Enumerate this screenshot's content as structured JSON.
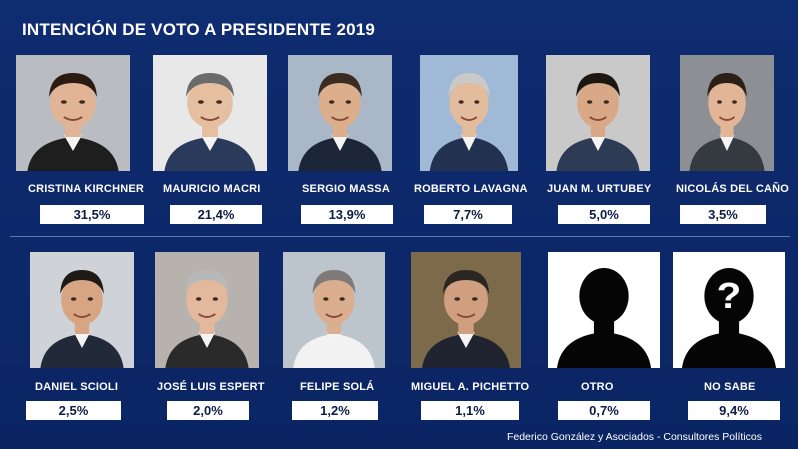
{
  "title": "INTENCIÓN DE VOTO A PRESIDENTE 2019",
  "footer": "Federico González y Asociados - Consultores Políticos",
  "colors": {
    "background": "#0d2a6b",
    "value_box": "#ffffff",
    "text": "#ffffff"
  },
  "chart_data": {
    "type": "bar",
    "title": "INTENCIÓN DE VOTO A PRESIDENTE 2019",
    "categories": [
      "CRISTINA KIRCHNER",
      "MAURICIO MACRI",
      "SERGIO MASSA",
      "ROBERTO LAVAGNA",
      "JUAN M. URTUBEY",
      "NICOLÁS DEL CAÑO",
      "DANIEL SCIOLI",
      "JOSÉ LUIS ESPERT",
      "FELIPE SOLÁ",
      "MIGUEL A. PICHETTO",
      "OTRO",
      "NO SABE"
    ],
    "values": [
      31.5,
      21.4,
      13.9,
      7.7,
      5.0,
      3.5,
      2.5,
      2.0,
      1.2,
      1.1,
      0.7,
      9.4
    ],
    "value_labels": [
      "31,5%",
      "21,4%",
      "13,9%",
      "7,7%",
      "5,0%",
      "3,5%",
      "2,5%",
      "2,0%",
      "1,2%",
      "1,1%",
      "0,7%",
      "9,4%"
    ],
    "photo_icons": [
      "portrait",
      "portrait",
      "portrait",
      "portrait",
      "portrait",
      "portrait",
      "portrait",
      "portrait",
      "portrait",
      "portrait",
      "silhouette",
      "question-silhouette"
    ]
  }
}
